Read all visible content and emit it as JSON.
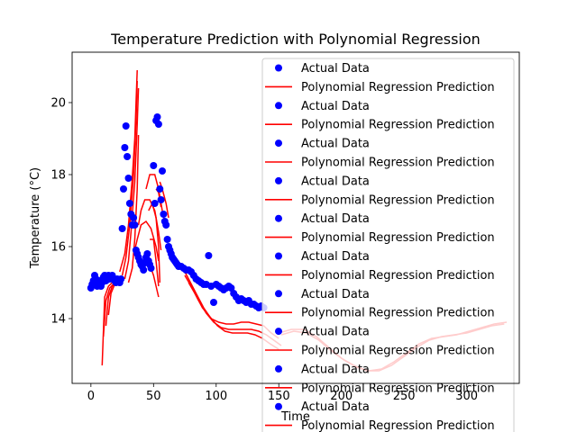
{
  "chart_data": {
    "type": "scatter",
    "title": "Temperature Prediction with Polynomial Regression",
    "xlabel": "Time",
    "ylabel": "Temperature (°C)",
    "xlim": [
      -15,
      342
    ],
    "ylim": [
      12.2,
      21.4
    ],
    "xticks": [
      0,
      50,
      100,
      150,
      200,
      250,
      300
    ],
    "yticks": [
      14,
      16,
      18,
      20
    ],
    "grid": false,
    "legend_position": "upper right",
    "legend_entries": [
      "Actual Data",
      "Polynomial Regression Prediction",
      "Actual Data",
      "Polynomial Regression Prediction",
      "Actual Data",
      "Polynomial Regression Prediction",
      "Actual Data",
      "Polynomial Regression Prediction",
      "Actual Data",
      "Polynomial Regression Prediction",
      "Actual Data",
      "Polynomial Regression Prediction",
      "Actual Data",
      "Polynomial Regression Prediction",
      "Actual Data",
      "Polynomial Regression Prediction",
      "Actual Data",
      "Polynomial Regression Prediction",
      "Actual Data",
      "Polynomial Regression Prediction"
    ],
    "colors": {
      "actual": "#0000ff",
      "prediction": "#ff0000"
    },
    "series": [
      {
        "name": "Actual Data",
        "style": "scatter",
        "points": [
          [
            0,
            14.85
          ],
          [
            1,
            14.95
          ],
          [
            2,
            15.05
          ],
          [
            3,
            15.2
          ],
          [
            4,
            15.1
          ],
          [
            5,
            14.9
          ],
          [
            6,
            15.0
          ],
          [
            7,
            15.05
          ],
          [
            8,
            14.9
          ],
          [
            9,
            15.0
          ],
          [
            10,
            15.15
          ],
          [
            11,
            15.2
          ],
          [
            12,
            15.05
          ],
          [
            13,
            15.1
          ],
          [
            14,
            15.2
          ],
          [
            15,
            15.1
          ],
          [
            16,
            15.15
          ],
          [
            17,
            15.2
          ],
          [
            18,
            15.1
          ],
          [
            19,
            15.05
          ],
          [
            20,
            15.0
          ],
          [
            21,
            15.1
          ],
          [
            22,
            15.05
          ],
          [
            23,
            15.0
          ],
          [
            24,
            15.1
          ],
          [
            25,
            16.5
          ],
          [
            26,
            17.6
          ],
          [
            27,
            18.75
          ],
          [
            28,
            19.35
          ],
          [
            29,
            18.5
          ],
          [
            30,
            17.9
          ],
          [
            31,
            17.2
          ],
          [
            32,
            16.9
          ],
          [
            33,
            16.6
          ],
          [
            34,
            16.8
          ],
          [
            35,
            16.6
          ],
          [
            36,
            15.9
          ],
          [
            37,
            15.8
          ],
          [
            38,
            15.7
          ],
          [
            39,
            15.6
          ],
          [
            40,
            15.5
          ],
          [
            41,
            15.45
          ],
          [
            42,
            15.35
          ],
          [
            43,
            15.55
          ],
          [
            44,
            15.7
          ],
          [
            45,
            15.8
          ],
          [
            46,
            15.6
          ],
          [
            47,
            15.5
          ],
          [
            48,
            15.4
          ],
          [
            50,
            18.25
          ],
          [
            51,
            17.2
          ],
          [
            52,
            19.5
          ],
          [
            53,
            19.6
          ],
          [
            54,
            19.4
          ],
          [
            55,
            17.6
          ],
          [
            56,
            17.3
          ],
          [
            57,
            18.1
          ],
          [
            58,
            16.9
          ],
          [
            59,
            16.7
          ],
          [
            60,
            16.6
          ],
          [
            61,
            16.2
          ],
          [
            62,
            16.0
          ],
          [
            63,
            15.9
          ],
          [
            64,
            15.8
          ],
          [
            65,
            15.7
          ],
          [
            66,
            15.65
          ],
          [
            67,
            15.6
          ],
          [
            68,
            15.55
          ],
          [
            69,
            15.5
          ],
          [
            70,
            15.45
          ],
          [
            72,
            15.45
          ],
          [
            74,
            15.4
          ],
          [
            76,
            15.35
          ],
          [
            78,
            15.35
          ],
          [
            80,
            15.3
          ],
          [
            82,
            15.2
          ],
          [
            84,
            15.1
          ],
          [
            86,
            15.05
          ],
          [
            88,
            15.0
          ],
          [
            90,
            14.95
          ],
          [
            92,
            14.95
          ],
          [
            94,
            15.75
          ],
          [
            96,
            14.9
          ],
          [
            98,
            14.45
          ],
          [
            100,
            14.95
          ],
          [
            102,
            14.9
          ],
          [
            104,
            14.85
          ],
          [
            106,
            14.8
          ],
          [
            108,
            14.85
          ],
          [
            110,
            14.9
          ],
          [
            112,
            14.85
          ],
          [
            114,
            14.7
          ],
          [
            116,
            14.6
          ],
          [
            118,
            14.5
          ],
          [
            120,
            14.55
          ],
          [
            122,
            14.5
          ],
          [
            124,
            14.45
          ],
          [
            126,
            14.5
          ],
          [
            128,
            14.4
          ],
          [
            130,
            14.4
          ],
          [
            132,
            14.35
          ],
          [
            134,
            14.3
          ],
          [
            136,
            14.35
          ],
          [
            138,
            14.3
          ]
        ]
      },
      {
        "name": "Polynomial Regression Prediction",
        "style": "line",
        "segments": [
          [
            [
              9,
              12.7
            ],
            [
              11,
              14.6
            ],
            [
              14,
              14.9
            ],
            [
              17,
              15.0
            ],
            [
              20,
              15.05
            ],
            [
              23,
              15.1
            ]
          ],
          [
            [
              10,
              13.5
            ],
            [
              12,
              14.5
            ],
            [
              15,
              14.85
            ],
            [
              19,
              15.0
            ],
            [
              23,
              15.05
            ]
          ],
          [
            [
              12,
              13.8
            ],
            [
              14,
              14.6
            ],
            [
              17,
              14.9
            ],
            [
              21,
              15.0
            ],
            [
              24,
              15.0
            ]
          ],
          [
            [
              14,
              14.1
            ],
            [
              16,
              14.7
            ],
            [
              19,
              14.95
            ],
            [
              23,
              15.0
            ]
          ],
          [
            [
              23,
              15.3
            ],
            [
              27,
              15.8
            ],
            [
              30,
              16.6
            ],
            [
              33,
              17.9
            ],
            [
              35,
              19.0
            ],
            [
              36,
              20.0
            ],
            [
              37,
              20.9
            ]
          ],
          [
            [
              25,
              15.2
            ],
            [
              28,
              15.7
            ],
            [
              31,
              16.6
            ],
            [
              34,
              18.0
            ],
            [
              36,
              19.5
            ],
            [
              37,
              20.6
            ]
          ],
          [
            [
              27,
              15.1
            ],
            [
              30,
              15.6
            ],
            [
              32,
              16.4
            ],
            [
              35,
              17.8
            ],
            [
              37,
              19.4
            ],
            [
              38,
              20.4
            ]
          ],
          [
            [
              30,
              15.0
            ],
            [
              33,
              15.4
            ],
            [
              35,
              16.2
            ],
            [
              37,
              17.6
            ],
            [
              38,
              19.1
            ]
          ],
          [
            [
              35,
              15.9
            ],
            [
              37,
              16.2
            ],
            [
              40,
              16.6
            ],
            [
              44,
              16.7
            ],
            [
              48,
              16.5
            ],
            [
              52,
              16.0
            ],
            [
              54,
              15.6
            ]
          ],
          [
            [
              38,
              16.6
            ],
            [
              40,
              17.0
            ],
            [
              43,
              17.3
            ],
            [
              47,
              17.3
            ],
            [
              51,
              17.0
            ],
            [
              54,
              16.4
            ],
            [
              56,
              15.9
            ]
          ],
          [
            [
              44,
              17.6
            ],
            [
              47,
              18.0
            ],
            [
              51,
              18.0
            ],
            [
              54,
              17.6
            ],
            [
              57,
              17.0
            ],
            [
              60,
              16.5
            ]
          ],
          [
            [
              46,
              17.0
            ],
            [
              49,
              17.2
            ],
            [
              52,
              16.8
            ],
            [
              54,
              16.0
            ],
            [
              55,
              15.0
            ]
          ],
          [
            [
              47,
              16.2
            ],
            [
              50,
              16.2
            ],
            [
              52,
              15.6
            ],
            [
              54,
              14.9
            ]
          ],
          [
            [
              55,
              17.8
            ],
            [
              57,
              17.6
            ],
            [
              60,
              17.2
            ],
            [
              62,
              16.8
            ]
          ],
          [
            [
              52,
              17.6
            ],
            [
              54,
              17.5
            ],
            [
              56,
              17.1
            ]
          ],
          [
            [
              48,
              15.4
            ],
            [
              50,
              15.2
            ],
            [
              52,
              14.9
            ],
            [
              54,
              14.6
            ]
          ],
          [
            [
              72,
              15.5
            ],
            [
              78,
              15.1
            ],
            [
              84,
              14.7
            ],
            [
              90,
              14.3
            ],
            [
              96,
              14.0
            ],
            [
              102,
              13.9
            ],
            [
              108,
              13.85
            ],
            [
              114,
              13.85
            ],
            [
              120,
              13.9
            ],
            [
              126,
              13.9
            ],
            [
              132,
              13.85
            ],
            [
              138,
              13.8
            ],
            [
              144,
              13.6
            ],
            [
              150,
              13.45
            ]
          ],
          [
            [
              75,
              15.2
            ],
            [
              80,
              14.9
            ],
            [
              86,
              14.5
            ],
            [
              92,
              14.15
            ],
            [
              98,
              13.9
            ],
            [
              104,
              13.75
            ],
            [
              110,
              13.7
            ],
            [
              116,
              13.7
            ],
            [
              122,
              13.7
            ],
            [
              128,
              13.7
            ],
            [
              134,
              13.65
            ],
            [
              140,
              13.55
            ],
            [
              146,
              13.4
            ],
            [
              152,
              13.25
            ]
          ],
          [
            [
              78,
              15.0
            ],
            [
              83,
              14.7
            ],
            [
              89,
              14.3
            ],
            [
              95,
              14.05
            ],
            [
              101,
              13.8
            ],
            [
              107,
              13.65
            ],
            [
              113,
              13.6
            ],
            [
              119,
              13.6
            ],
            [
              125,
              13.6
            ],
            [
              131,
              13.55
            ],
            [
              137,
              13.45
            ],
            [
              143,
              13.3
            ],
            [
              150,
              13.15
            ]
          ],
          [
            [
              150,
              13.6
            ],
            [
              160,
              13.7
            ],
            [
              170,
              13.7
            ],
            [
              180,
              13.5
            ],
            [
              190,
              13.2
            ],
            [
              200,
              12.9
            ],
            [
              210,
              12.7
            ],
            [
              220,
              12.55
            ],
            [
              230,
              12.55
            ],
            [
              240,
              12.7
            ],
            [
              250,
              12.95
            ],
            [
              260,
              13.2
            ],
            [
              270,
              13.4
            ],
            [
              280,
              13.5
            ],
            [
              290,
              13.55
            ],
            [
              300,
              13.6
            ],
            [
              310,
              13.7
            ],
            [
              320,
              13.8
            ],
            [
              330,
              13.85
            ]
          ],
          [
            [
              152,
              13.55
            ],
            [
              162,
              13.65
            ],
            [
              172,
              13.6
            ],
            [
              182,
              13.4
            ],
            [
              192,
              13.1
            ],
            [
              202,
              12.85
            ],
            [
              212,
              12.65
            ],
            [
              222,
              12.55
            ],
            [
              232,
              12.6
            ],
            [
              242,
              12.8
            ],
            [
              252,
              13.05
            ],
            [
              262,
              13.3
            ],
            [
              272,
              13.45
            ],
            [
              282,
              13.5
            ],
            [
              292,
              13.55
            ],
            [
              302,
              13.65
            ],
            [
              312,
              13.75
            ],
            [
              322,
              13.85
            ],
            [
              332,
              13.9
            ]
          ]
        ]
      }
    ]
  }
}
